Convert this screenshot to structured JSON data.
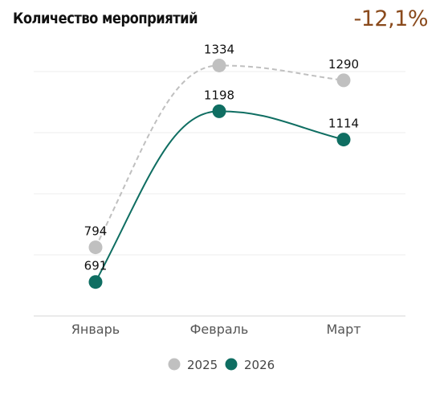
{
  "header": {
    "title": "Количество мероприятий",
    "delta": "-12,1%",
    "delta_color": "#8a4a1c"
  },
  "chart_data": {
    "type": "line",
    "categories": [
      "Январь",
      "Февраль",
      "Март"
    ],
    "series": [
      {
        "name": "2025",
        "values": [
          794,
          1334,
          1290
        ],
        "color": "#c0c0c0",
        "style": "dashed"
      },
      {
        "name": "2026",
        "values": [
          691,
          1198,
          1114
        ],
        "color": "#0f6e62",
        "style": "solid"
      }
    ],
    "ylim": [
      590,
      1390
    ],
    "grid": true,
    "legend": "bottom-center"
  }
}
